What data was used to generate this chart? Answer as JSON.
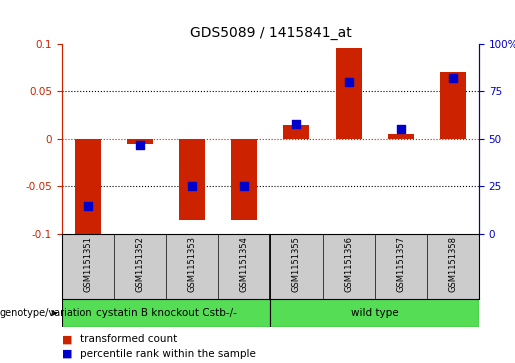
{
  "title": "GDS5089 / 1415841_at",
  "samples": [
    "GSM1151351",
    "GSM1151352",
    "GSM1151353",
    "GSM1151354",
    "GSM1151355",
    "GSM1151356",
    "GSM1151357",
    "GSM1151358"
  ],
  "red_values": [
    -0.1,
    -0.005,
    -0.085,
    -0.085,
    0.015,
    0.095,
    0.005,
    0.07
  ],
  "blue_percentiles": [
    15,
    47,
    25,
    25,
    58,
    80,
    55,
    82
  ],
  "ylim": [
    -0.1,
    0.1
  ],
  "yticks_left": [
    -0.1,
    -0.05,
    0.0,
    0.05,
    0.1
  ],
  "yticks_right_pct": [
    0,
    25,
    50,
    75,
    100
  ],
  "groups": [
    {
      "label": "cystatin B knockout Cstb-/-",
      "start": 0,
      "end": 4,
      "color": "#55DD55"
    },
    {
      "label": "wild type",
      "start": 4,
      "end": 8,
      "color": "#55DD55"
    }
  ],
  "group_separator": 4,
  "bar_color": "#CC2200",
  "dot_color": "#0000CC",
  "bar_width": 0.5,
  "dot_size": 30,
  "plot_bg_color": "#FFFFFF",
  "label_area_color": "#CCCCCC",
  "genotype_label": "genotype/variation",
  "legend_red": "transformed count",
  "legend_blue": "percentile rank within the sample",
  "title_color": "#000000",
  "left_axis_color": "#CC2200",
  "right_axis_color": "#0000CC",
  "fig_width": 5.15,
  "fig_height": 3.63,
  "dpi": 100
}
